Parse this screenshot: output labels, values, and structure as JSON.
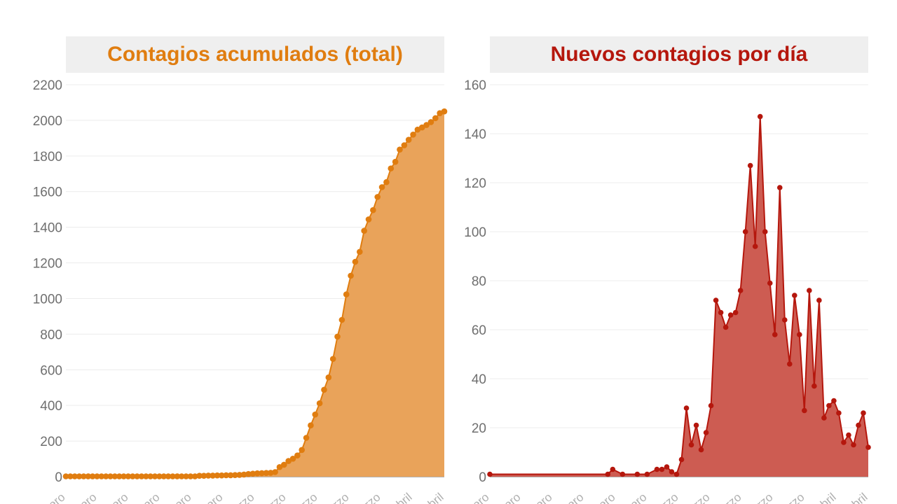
{
  "colors": {
    "left_title": "#e07d10",
    "left_line": "#e07d10",
    "left_fill": "#e9a35a",
    "right_title": "#b5170d",
    "right_line": "#b5170d",
    "right_fill": "#cd5c52",
    "grid": "#ececec",
    "axis": "#9a9a9a"
  },
  "chart_data": [
    {
      "type": "area",
      "title": "Contagios acumulados (total)",
      "ylim": [
        0,
        2200
      ],
      "yticks": [
        0,
        200,
        400,
        600,
        800,
        1000,
        1200,
        1400,
        1600,
        1800,
        2000,
        2200
      ],
      "grid": true,
      "xtick_labels": [
        "Enero",
        "Febrero",
        "Febrero",
        "Febrero",
        "Febrero",
        "Febrero",
        "Marzo",
        "Marzo",
        "Marzo",
        "Marzo",
        "Marzo",
        "Abril",
        "Abril"
      ],
      "values": [
        2,
        2,
        2,
        2,
        2,
        2,
        2,
        2,
        2,
        2,
        2,
        2,
        2,
        2,
        2,
        2,
        2,
        2,
        2,
        2,
        2,
        2,
        2,
        2,
        2,
        2,
        2,
        2,
        2,
        2,
        5,
        5,
        6,
        6,
        7,
        7,
        8,
        8,
        9,
        10,
        12,
        15,
        17,
        19,
        20,
        21,
        22,
        26,
        54,
        67,
        88,
        101,
        119,
        150,
        218,
        288,
        349,
        412,
        488,
        557,
        661,
        786,
        880,
        1023,
        1128,
        1206,
        1262,
        1380,
        1444,
        1496,
        1570,
        1625,
        1653,
        1730,
        1767,
        1836,
        1860,
        1891,
        1920,
        1948,
        1960,
        1974,
        1990,
        2012,
        2040,
        2050
      ]
    },
    {
      "type": "area",
      "title": "Nuevos contagios por día",
      "ylim": [
        0,
        160
      ],
      "yticks": [
        0,
        20,
        40,
        60,
        80,
        100,
        120,
        140,
        160
      ],
      "grid": true,
      "xtick_labels": [
        "Enero",
        "Febrero",
        "Febrero",
        "Febrero",
        "Febrero",
        "Febrero",
        "Marzo",
        "Marzo",
        "Marzo",
        "Marzo",
        "Marzo",
        "Abril",
        "Abril"
      ],
      "points": [
        [
          0,
          1
        ],
        [
          24,
          1
        ],
        [
          25,
          3
        ],
        [
          27,
          1
        ],
        [
          30,
          1
        ],
        [
          32,
          1
        ],
        [
          34,
          3
        ],
        [
          35,
          3
        ],
        [
          36,
          4
        ],
        [
          37,
          2
        ],
        [
          38,
          1
        ],
        [
          39,
          7
        ],
        [
          40,
          28
        ],
        [
          41,
          13
        ],
        [
          42,
          21
        ],
        [
          43,
          11
        ],
        [
          44,
          18
        ],
        [
          45,
          29
        ],
        [
          46,
          72
        ],
        [
          47,
          67
        ],
        [
          48,
          61
        ],
        [
          49,
          66
        ],
        [
          50,
          67
        ],
        [
          51,
          76
        ],
        [
          52,
          100
        ],
        [
          53,
          127
        ],
        [
          54,
          94
        ],
        [
          55,
          147
        ],
        [
          56,
          100
        ],
        [
          57,
          79
        ],
        [
          58,
          58
        ],
        [
          59,
          118
        ],
        [
          60,
          64
        ],
        [
          61,
          46
        ],
        [
          62,
          74
        ],
        [
          63,
          58
        ],
        [
          64,
          27
        ],
        [
          65,
          76
        ],
        [
          66,
          37
        ],
        [
          67,
          72
        ],
        [
          68,
          24
        ],
        [
          69,
          29
        ],
        [
          70,
          31
        ],
        [
          71,
          26
        ],
        [
          72,
          14
        ],
        [
          73,
          17
        ],
        [
          74,
          13
        ],
        [
          75,
          21
        ],
        [
          76,
          26
        ],
        [
          77,
          12
        ]
      ]
    }
  ]
}
